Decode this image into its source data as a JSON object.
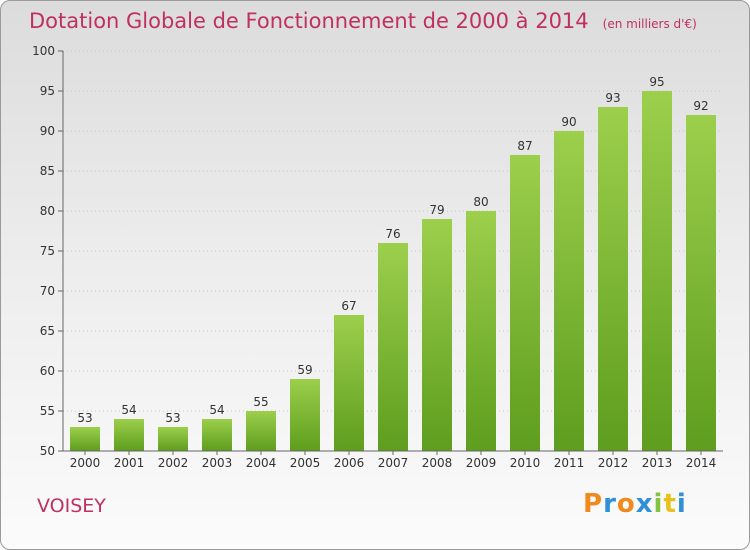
{
  "title": "Dotation Globale de Fonctionnement de 2000 à 2014",
  "unit": "(en milliers d'€)",
  "place": "VOISEY",
  "logo": {
    "letters": [
      "P",
      "r",
      "o",
      "x",
      "i",
      "t",
      "i"
    ],
    "colors": [
      "#f08a1c",
      "#2f8fd8",
      "#f08a1c",
      "#2f8fd8",
      "#82c341",
      "#e8c21a",
      "#2f8fd8"
    ]
  },
  "colors": {
    "bar_top": "#9ccf4c",
    "bar_bottom": "#5e9d1e",
    "title": "#c0305f"
  },
  "chart_data": {
    "type": "bar",
    "title": "Dotation Globale de Fonctionnement de 2000 à 2014",
    "xlabel": "",
    "ylabel": "",
    "categories": [
      "2000",
      "2001",
      "2002",
      "2003",
      "2004",
      "2005",
      "2006",
      "2007",
      "2008",
      "2009",
      "2010",
      "2011",
      "2012",
      "2013",
      "2014"
    ],
    "values": [
      53,
      54,
      53,
      54,
      55,
      59,
      67,
      76,
      79,
      80,
      87,
      90,
      93,
      95,
      92
    ],
    "ylim": [
      50,
      100
    ],
    "yticks": [
      50,
      55,
      60,
      65,
      70,
      75,
      80,
      85,
      90,
      95,
      100
    ],
    "grid": true,
    "data_labels": true
  }
}
